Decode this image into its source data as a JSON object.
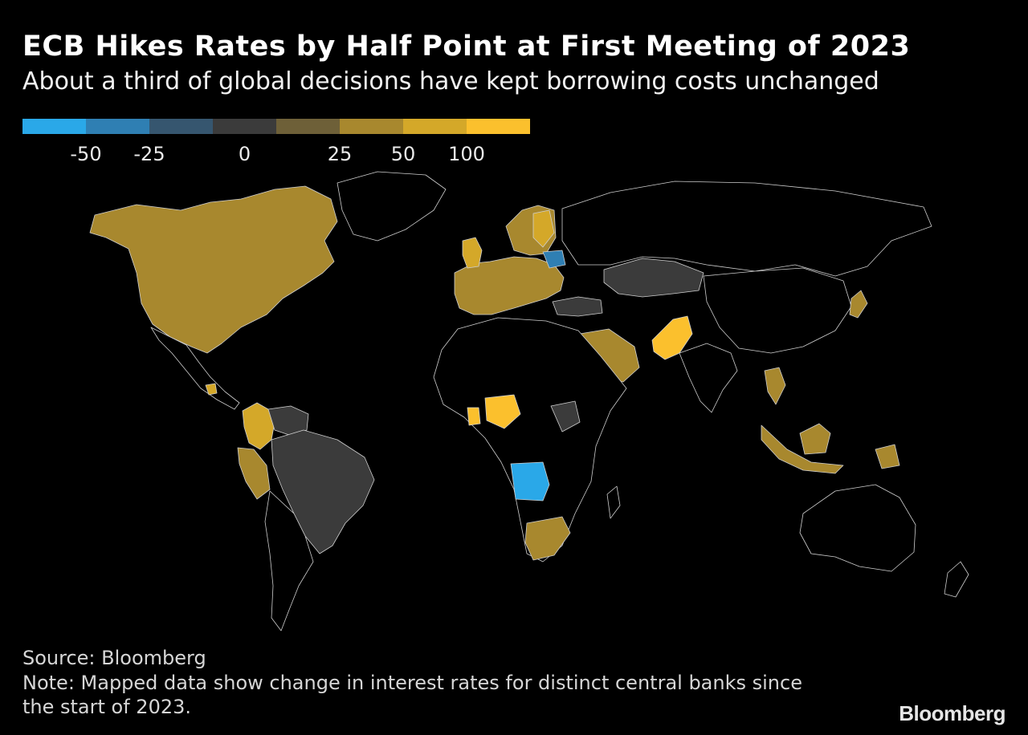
{
  "title": "ECB Hikes Rates by Half Point at First Meeting of 2023",
  "subtitle": "About a third of global decisions have kept borrowing costs unchanged",
  "legend": {
    "colors": [
      "#2aa8e8",
      "#2f7fb3",
      "#36566f",
      "#3b3b3b",
      "#6e6038",
      "#a8882e",
      "#d4a829",
      "#fbc02d"
    ],
    "labels": [
      "-50",
      "-25",
      "0",
      "25",
      "50",
      "100"
    ]
  },
  "source": "Source: Bloomberg",
  "note": "Note: Mapped data show change in interest rates for distinct central banks since the start of 2023.",
  "brand": "Bloomberg",
  "colors": {
    "background": "#000000",
    "no_data": "#000000",
    "border": "#cfcfcf"
  }
}
